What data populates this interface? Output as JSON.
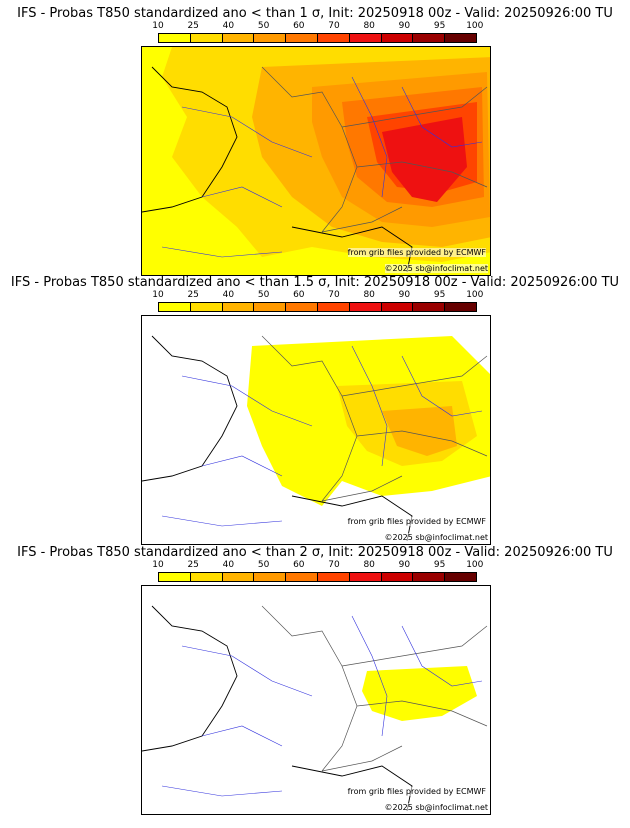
{
  "panels": [
    {
      "title": "IFS - Probas T850  standardized ano < than 1 σ, Init: 20250918 00z - Valid: 20250926:00 TU",
      "coverage": "strong",
      "source_credit": "from grib files provided by ECMWF",
      "copyright": "©2025 sb@infoclimat.net"
    },
    {
      "title": "IFS - Probas T850  standardized ano < than 1.5 σ, Init: 20250918 00z - Valid: 20250926:00 TU",
      "coverage": "medium",
      "source_credit": "from grib files provided by ECMWF",
      "copyright": "©2025 sb@infoclimat.net"
    },
    {
      "title": "IFS - Probas T850  standardized ano < than 2 σ, Init: 20250918 00z - Valid: 20250926:00 TU",
      "coverage": "weak",
      "source_credit": "from grib files provided by ECMWF",
      "copyright": "©2025 sb@infoclimat.net"
    }
  ],
  "legend": {
    "ticks": [
      "10",
      "25",
      "40",
      "50",
      "60",
      "70",
      "80",
      "90",
      "95",
      "100"
    ],
    "colors": [
      "#ffff00",
      "#ffdd00",
      "#ffb400",
      "#ff9a00",
      "#ff7800",
      "#ff4400",
      "#ee1111",
      "#cc0000",
      "#990000",
      "#660000"
    ]
  },
  "map_colors": {
    "land_line": "#999999",
    "river": "#3333dd",
    "border": "#555555"
  }
}
